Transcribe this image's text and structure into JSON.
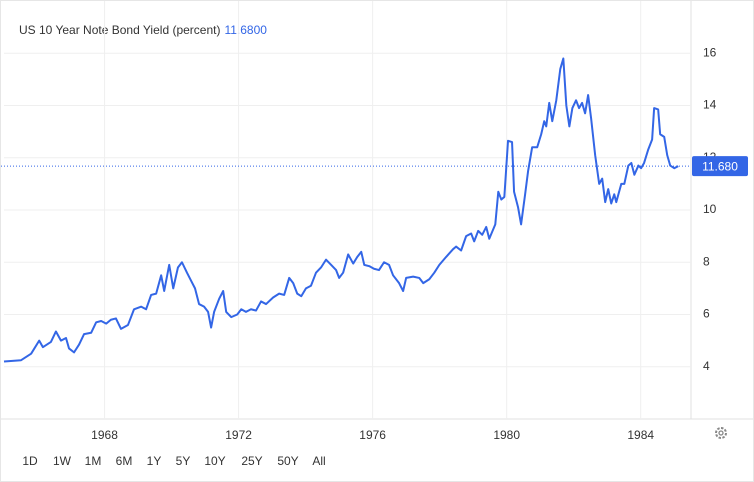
{
  "chart_data": {
    "type": "line",
    "title": "US 10 Year Note Bond Yield (percent)",
    "title_value": "11.6800",
    "current_value": {
      "value": 11.68,
      "label": "11.680"
    },
    "x": [
      1965.0,
      1965.51,
      1965.81,
      1966.05,
      1966.16,
      1966.4,
      1966.55,
      1966.7,
      1966.85,
      1966.94,
      1967.09,
      1967.24,
      1967.39,
      1967.6,
      1967.75,
      1967.9,
      1968.05,
      1968.19,
      1968.34,
      1968.49,
      1968.7,
      1968.88,
      1969.09,
      1969.24,
      1969.39,
      1969.54,
      1969.69,
      1969.78,
      1969.93,
      1970.05,
      1970.19,
      1970.31,
      1970.46,
      1970.58,
      1970.7,
      1970.82,
      1970.97,
      1971.09,
      1971.18,
      1971.27,
      1971.42,
      1971.54,
      1971.63,
      1971.78,
      1971.96,
      1972.08,
      1972.22,
      1972.37,
      1972.52,
      1972.67,
      1972.82,
      1973.03,
      1973.21,
      1973.36,
      1973.51,
      1973.63,
      1973.75,
      1973.87,
      1974.01,
      1974.16,
      1974.31,
      1974.46,
      1974.61,
      1974.76,
      1974.91,
      1975.0,
      1975.12,
      1975.27,
      1975.42,
      1975.54,
      1975.66,
      1975.75,
      1975.9,
      1976.04,
      1976.19,
      1976.34,
      1976.49,
      1976.61,
      1976.79,
      1976.91,
      1977.0,
      1977.21,
      1977.39,
      1977.51,
      1977.69,
      1977.84,
      1977.99,
      1978.19,
      1978.4,
      1978.49,
      1978.64,
      1978.79,
      1978.94,
      1979.03,
      1979.15,
      1979.27,
      1979.39,
      1979.48,
      1979.66,
      1979.75,
      1979.84,
      1979.93,
      1980.04,
      1980.16,
      1980.22,
      1980.34,
      1980.43,
      1980.55,
      1980.64,
      1980.76,
      1980.91,
      1981.03,
      1981.12,
      1981.18,
      1981.27,
      1981.36,
      1981.48,
      1981.6,
      1981.69,
      1981.78,
      1981.87,
      1981.96,
      1982.07,
      1982.16,
      1982.25,
      1982.34,
      1982.43,
      1982.52,
      1982.64,
      1982.76,
      1982.85,
      1982.94,
      1983.03,
      1983.12,
      1983.21,
      1983.27,
      1983.42,
      1983.51,
      1983.63,
      1983.72,
      1983.81,
      1983.93,
      1984.01,
      1984.1,
      1984.22,
      1984.34,
      1984.4,
      1984.52,
      1984.58,
      1984.7,
      1984.79,
      1984.88,
      1985.0,
      1985.12
    ],
    "values": [
      4.2,
      4.25,
      4.5,
      5.0,
      4.75,
      4.95,
      5.35,
      5.0,
      5.1,
      4.7,
      4.55,
      4.85,
      5.25,
      5.3,
      5.7,
      5.75,
      5.65,
      5.8,
      5.85,
      5.45,
      5.6,
      6.2,
      6.3,
      6.2,
      6.75,
      6.8,
      7.5,
      6.9,
      7.9,
      7.0,
      7.8,
      8.0,
      7.6,
      7.3,
      7.0,
      6.4,
      6.3,
      6.1,
      5.5,
      6.1,
      6.6,
      6.9,
      6.1,
      5.9,
      6.0,
      6.2,
      6.1,
      6.2,
      6.15,
      6.5,
      6.4,
      6.65,
      6.8,
      6.75,
      7.4,
      7.2,
      6.8,
      6.7,
      7.0,
      7.1,
      7.6,
      7.8,
      8.1,
      7.9,
      7.7,
      7.4,
      7.6,
      8.3,
      7.95,
      8.2,
      8.4,
      7.9,
      7.85,
      7.75,
      7.7,
      8.0,
      7.9,
      7.5,
      7.2,
      6.9,
      7.4,
      7.45,
      7.4,
      7.2,
      7.35,
      7.6,
      7.9,
      8.2,
      8.5,
      8.6,
      8.45,
      9.0,
      9.1,
      8.8,
      9.2,
      9.05,
      9.35,
      8.9,
      9.45,
      10.7,
      10.4,
      10.5,
      12.65,
      12.6,
      10.7,
      10.1,
      9.45,
      10.6,
      11.5,
      12.4,
      12.4,
      12.9,
      13.4,
      13.2,
      14.1,
      13.4,
      14.2,
      15.4,
      15.8,
      14.0,
      13.2,
      13.9,
      14.2,
      13.9,
      14.1,
      13.7,
      14.4,
      13.5,
      12.1,
      11.0,
      11.2,
      10.3,
      10.8,
      10.25,
      10.6,
      10.3,
      11.0,
      11.0,
      11.7,
      11.8,
      11.35,
      11.7,
      11.6,
      11.8,
      12.3,
      12.7,
      13.9,
      13.85,
      12.9,
      12.8,
      12.1,
      11.7,
      11.6,
      11.68
    ],
    "color": "#3366e6",
    "xlim": [
      1965,
      1985.5
    ],
    "xticks": [
      1968,
      1972,
      1976,
      1980,
      1984
    ],
    "ylim": [
      2,
      18
    ],
    "yticks": [
      4,
      6,
      8,
      10,
      12,
      14,
      16
    ],
    "grid": true
  },
  "ranges": [
    "1D",
    "1W",
    "1M",
    "6M",
    "1Y",
    "5Y",
    "10Y",
    "25Y",
    "50Y",
    "All"
  ]
}
